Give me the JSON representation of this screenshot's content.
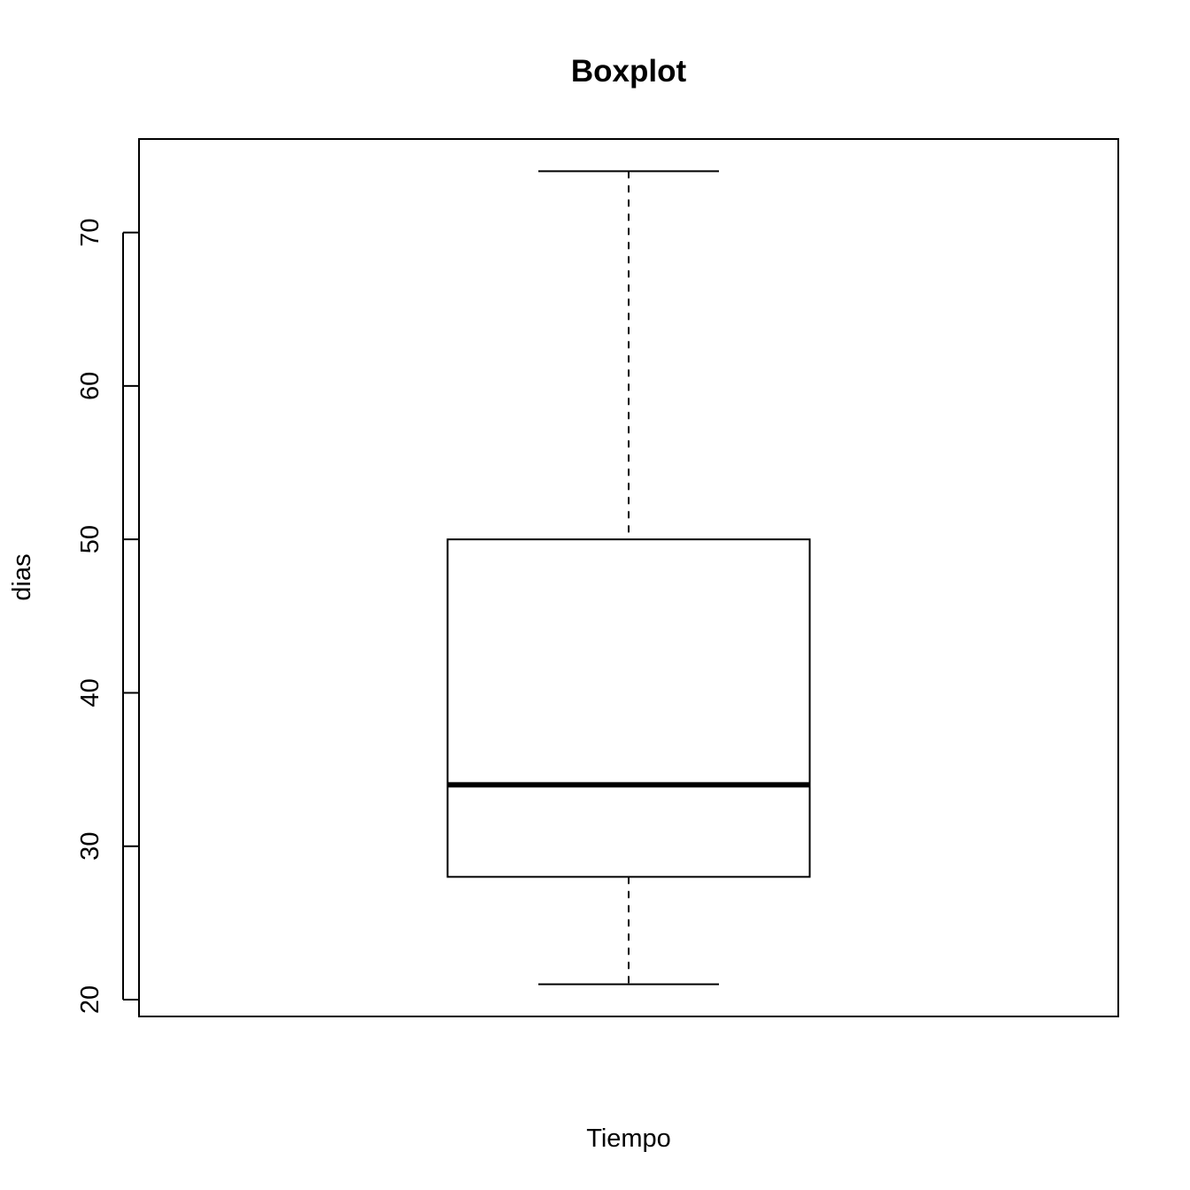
{
  "chart_data": {
    "type": "boxplot",
    "title": "Boxplot",
    "xlabel": "Tiempo",
    "ylabel": "dias",
    "ylim": [
      18.9,
      76.1
    ],
    "yticks": [
      20,
      30,
      40,
      50,
      60,
      70
    ],
    "ytick_labels": [
      "20",
      "30",
      "40",
      "50",
      "60",
      "70"
    ],
    "grid": false,
    "legend": "none",
    "series": [
      {
        "whisker_low": 21,
        "q1": 28,
        "median": 34,
        "q3": 50,
        "whisker_high": 74
      }
    ]
  },
  "colors": {
    "background": "#ffffff",
    "stroke": "#000000"
  }
}
